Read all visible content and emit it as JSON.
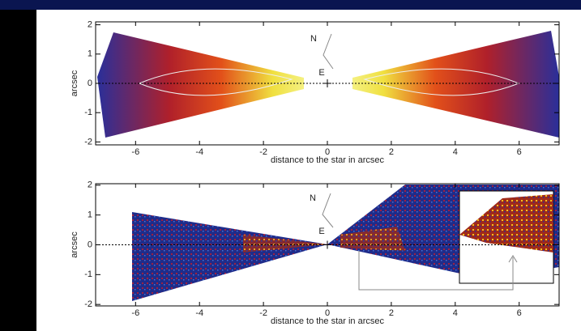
{
  "chart_data": [
    {
      "type": "image",
      "xlabel": "distance to the star in arcsec",
      "ylabel": "arcsec",
      "xlim": [
        -7.25,
        7.25
      ],
      "ylim": [
        -2.1,
        2.1
      ],
      "xticks": [
        -6,
        -4,
        -2,
        0,
        2,
        4,
        6
      ],
      "yticks": [
        -2,
        -1,
        0,
        1,
        2
      ],
      "compass": [
        "N",
        "E"
      ]
    },
    {
      "type": "image",
      "xlabel": "distance to the star in arcsec",
      "ylabel": "arcsec",
      "xlim": [
        -7.25,
        7.25
      ],
      "ylim": [
        -2.05,
        2.05
      ],
      "xticks": [
        -6,
        -4,
        -2,
        0,
        2,
        4,
        6
      ],
      "yticks": [
        -2,
        -1,
        0,
        1,
        2
      ],
      "compass": [
        "N",
        "E"
      ]
    }
  ]
}
